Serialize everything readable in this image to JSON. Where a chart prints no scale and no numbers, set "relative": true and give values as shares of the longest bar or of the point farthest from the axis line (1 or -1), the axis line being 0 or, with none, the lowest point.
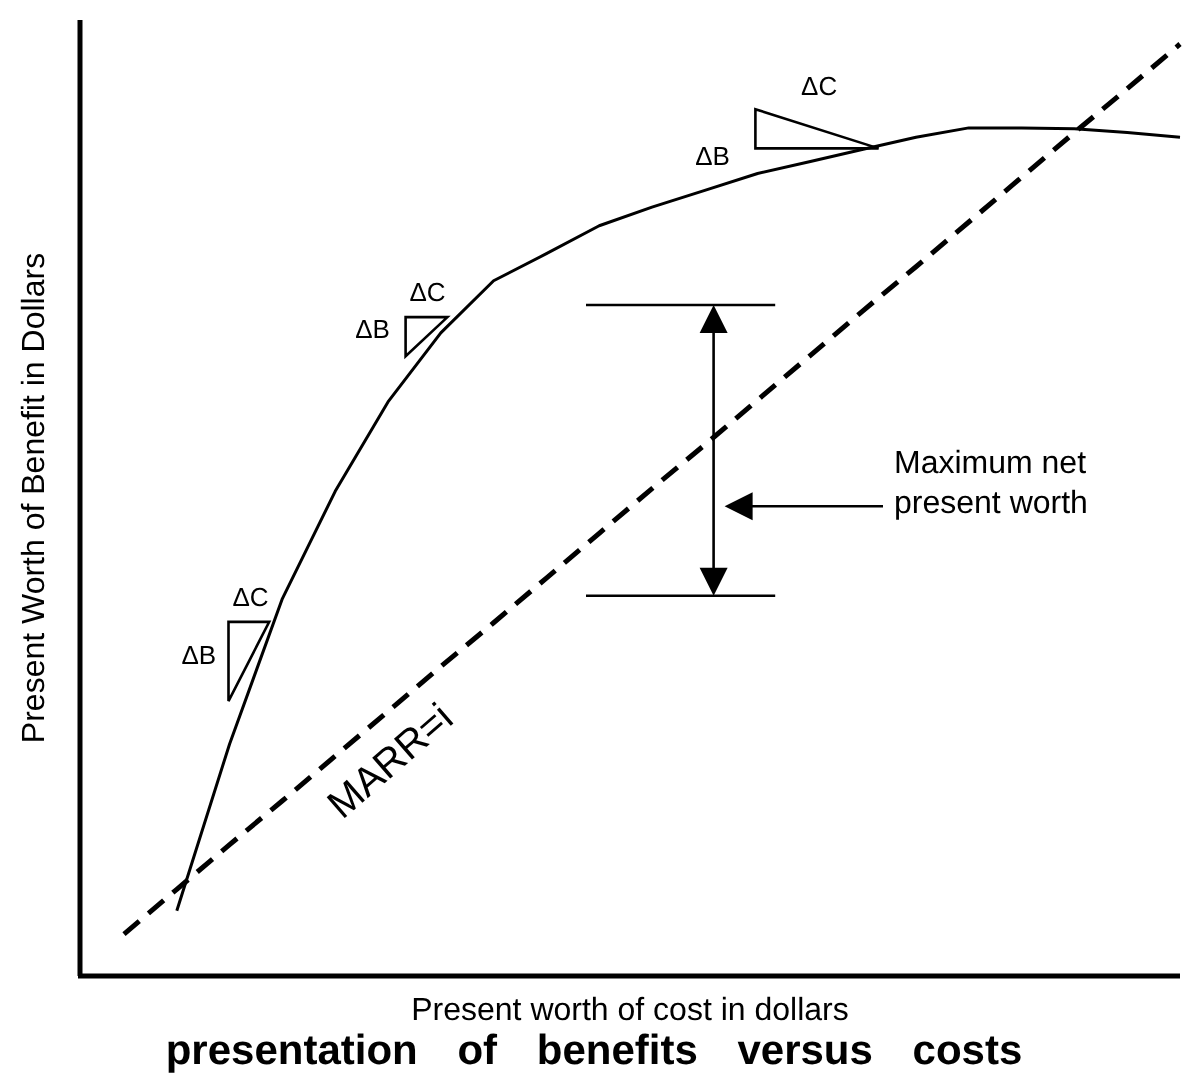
{
  "chart_data": {
    "type": "line",
    "relative": true,
    "title": "presentation of benefits versus costs",
    "xlabel": "Present worth of cost in dollars",
    "ylabel": "Present Worth of Benefit in Dollars",
    "categories": [
      null,
      null,
      null,
      null,
      null,
      null,
      null,
      null,
      null,
      null,
      null,
      null,
      null,
      null,
      null,
      null,
      null,
      null,
      null,
      null,
      null
    ],
    "series": [
      {
        "color": "#000000",
        "line_style": "solid",
        "values": [
          null,
          0.07,
          0.249,
          0.405,
          0.52,
          0.616,
          0.69,
          0.746,
          0.775,
          0.805,
          0.825,
          0.843,
          0.861,
          0.874,
          0.887,
          0.9,
          0.91,
          0.91,
          0.909,
          0.905,
          0.9
        ]
      },
      {
        "color": "#000000",
        "line_style": "dashed",
        "values": [
          0.045,
          0.093,
          0.141,
          0.188,
          0.236,
          0.284,
          0.332,
          0.379,
          0.427,
          0.475,
          0.523,
          0.57,
          0.618,
          0.666,
          0.714,
          0.761,
          0.809,
          0.857,
          0.905,
          0.952,
          1
        ]
      }
    ],
    "annotations": [
      "ΔC",
      "ΔB",
      "ΔC",
      "ΔB",
      "ΔC",
      "ΔB",
      "Maximum net present worth",
      "MARR=i"
    ]
  }
}
